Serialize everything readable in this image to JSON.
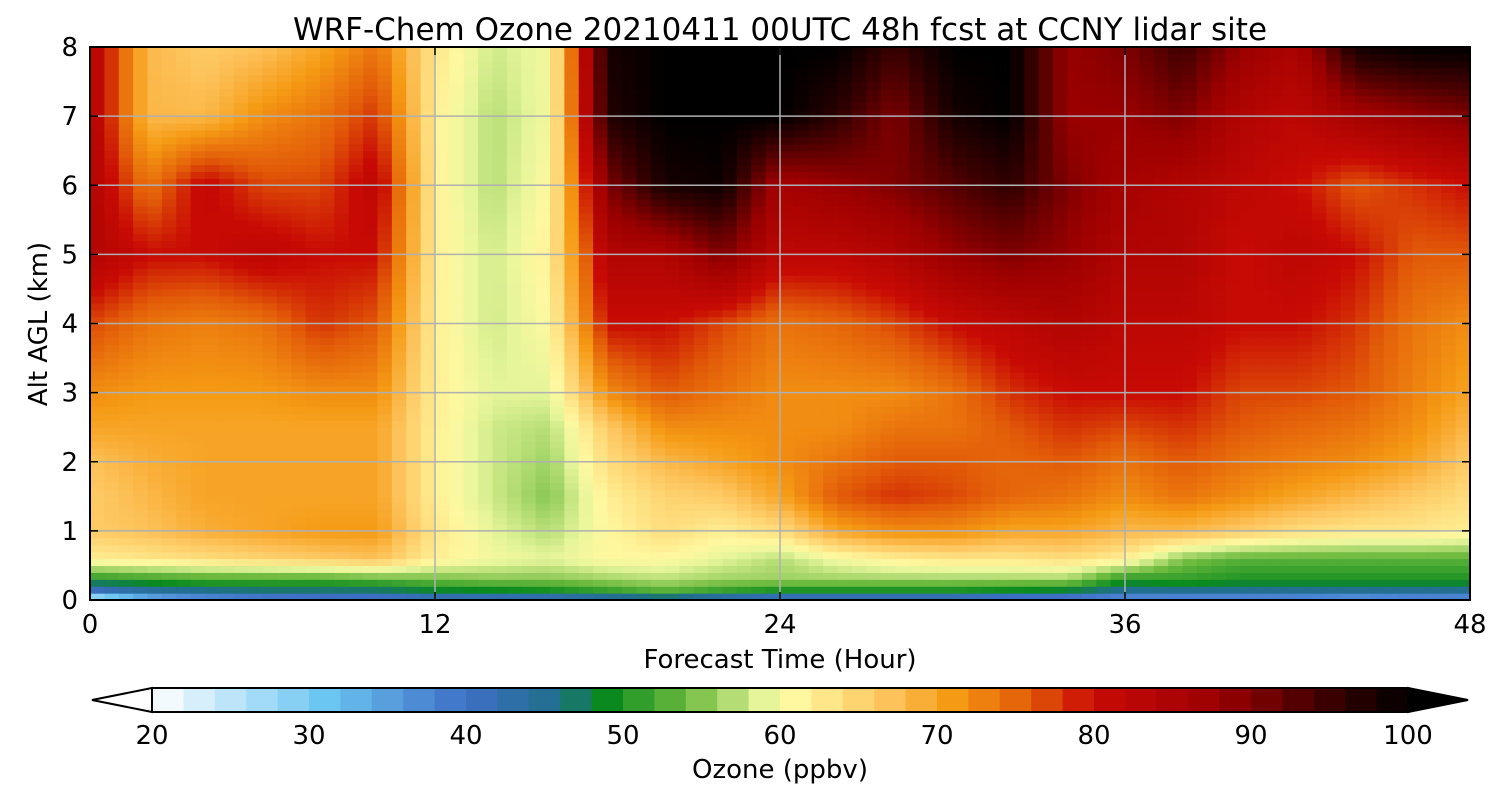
{
  "chart_data": {
    "type": "heatmap",
    "title": "WRF-Chem Ozone  20210411 00UTC 48h fcst at CCNY lidar site",
    "xlabel": "Forecast Time (Hour)",
    "ylabel": "Alt AGL (km)",
    "xlim": [
      0,
      48
    ],
    "ylim": [
      0,
      8
    ],
    "xticks": [
      "0",
      "12",
      "24",
      "36",
      "48"
    ],
    "yticks": [
      "0",
      "1",
      "2",
      "3",
      "4",
      "5",
      "6",
      "7",
      "8"
    ],
    "grid": true,
    "x_hours": [
      0,
      2,
      4,
      6,
      8,
      10,
      12,
      14,
      16,
      18,
      20,
      22,
      24,
      26,
      28,
      30,
      32,
      34,
      36,
      38,
      40,
      42,
      44,
      46,
      48
    ],
    "z_km": [
      0,
      0.1,
      0.3,
      0.6,
      1,
      1.5,
      2,
      2.5,
      3,
      4,
      5,
      6,
      7,
      8
    ],
    "ozone_ppbv": [
      [
        18,
        38,
        50,
        62,
        66,
        66,
        67,
        70,
        72,
        77,
        84,
        84,
        84,
        84
      ],
      [
        28,
        42,
        51,
        63,
        67,
        68,
        69,
        70,
        71,
        74,
        80,
        74,
        68,
        68
      ],
      [
        32,
        44,
        52,
        64,
        69,
        70,
        70,
        70,
        71,
        73,
        80,
        81,
        68,
        66
      ],
      [
        34,
        45,
        52,
        65,
        70,
        70,
        70,
        70,
        71,
        74,
        82,
        77,
        72,
        67
      ],
      [
        35,
        45,
        52,
        66,
        71,
        70,
        70,
        70,
        72,
        78,
        80,
        77,
        74,
        70
      ],
      [
        36,
        45,
        53,
        67,
        71,
        70,
        70,
        70,
        72,
        76,
        80,
        82,
        78,
        74
      ],
      [
        38,
        47,
        54,
        62,
        63,
        62,
        62,
        62,
        62,
        62,
        62,
        62,
        62,
        63
      ],
      [
        38,
        47,
        55,
        60,
        59,
        58,
        58,
        58,
        59,
        58,
        58,
        57,
        57,
        58
      ],
      [
        38,
        48,
        55,
        59,
        57,
        55,
        56,
        57,
        59,
        61,
        62,
        61,
        60,
        60
      ],
      [
        40,
        50,
        56,
        61,
        61,
        62,
        64,
        66,
        72,
        80,
        84,
        90,
        97,
        98
      ],
      [
        42,
        52,
        57,
        61,
        64,
        65,
        68,
        72,
        76,
        80,
        84,
        98,
        100,
        100
      ],
      [
        38,
        50,
        56,
        59,
        62,
        66,
        70,
        72,
        74,
        77,
        90,
        99,
        100,
        100
      ],
      [
        36,
        48,
        56,
        57,
        64,
        70,
        72,
        72,
        72,
        74,
        82,
        86,
        100,
        100
      ],
      [
        36,
        48,
        56,
        60,
        70,
        76,
        74,
        72,
        72,
        75,
        82,
        88,
        96,
        100
      ],
      [
        36,
        48,
        56,
        62,
        72,
        78,
        76,
        74,
        72,
        77,
        84,
        90,
        90,
        95
      ],
      [
        36,
        48,
        56,
        63,
        72,
        77,
        76,
        74,
        74,
        80,
        88,
        93,
        98,
        100
      ],
      [
        34,
        47,
        56,
        63,
        70,
        75,
        75,
        76,
        78,
        82,
        90,
        96,
        100,
        100
      ],
      [
        34,
        46,
        56,
        64,
        70,
        74,
        76,
        78,
        80,
        84,
        88,
        90,
        88,
        88
      ],
      [
        32,
        44,
        50,
        62,
        68,
        72,
        74,
        77,
        80,
        82,
        84,
        86,
        88,
        90
      ],
      [
        32,
        44,
        51,
        55,
        68,
        74,
        76,
        78,
        80,
        82,
        84,
        84,
        90,
        95
      ],
      [
        32,
        44,
        50,
        53,
        66,
        72,
        74,
        76,
        77,
        80,
        80,
        82,
        84,
        88
      ],
      [
        32,
        44,
        50,
        53,
        64,
        70,
        73,
        75,
        77,
        80,
        82,
        80,
        82,
        85
      ],
      [
        30,
        44,
        50,
        53,
        63,
        68,
        72,
        74,
        76,
        78,
        80,
        76,
        86,
        98
      ],
      [
        32,
        44,
        50,
        53,
        63,
        66,
        70,
        72,
        73,
        74,
        76,
        78,
        88,
        100
      ],
      [
        32,
        44,
        50,
        53,
        62,
        64,
        66,
        68,
        70,
        72,
        76,
        80,
        90,
        100
      ]
    ]
  },
  "colorbar": {
    "label": "Ozone  (ppbv)",
    "min": 20,
    "max": 100,
    "ticks": [
      "20",
      "30",
      "40",
      "50",
      "60",
      "70",
      "80",
      "90",
      "100"
    ],
    "color_stops": [
      {
        "value": 20,
        "color": "#ffffff"
      },
      {
        "value": 31,
        "color": "#6cc6f2"
      },
      {
        "value": 40,
        "color": "#3e6fc6"
      },
      {
        "value": 46,
        "color": "#1f6f8a"
      },
      {
        "value": 49,
        "color": "#0a8a1e"
      },
      {
        "value": 54,
        "color": "#6cba3e"
      },
      {
        "value": 59,
        "color": "#e6f59a"
      },
      {
        "value": 61,
        "color": "#fff8a0"
      },
      {
        "value": 67,
        "color": "#fdc25a"
      },
      {
        "value": 71,
        "color": "#f59a14"
      },
      {
        "value": 76,
        "color": "#e25a08"
      },
      {
        "value": 80,
        "color": "#c80a04"
      },
      {
        "value": 88,
        "color": "#9a0000"
      },
      {
        "value": 95,
        "color": "#3a0000"
      },
      {
        "value": 100,
        "color": "#000000"
      }
    ],
    "extend": "both"
  }
}
